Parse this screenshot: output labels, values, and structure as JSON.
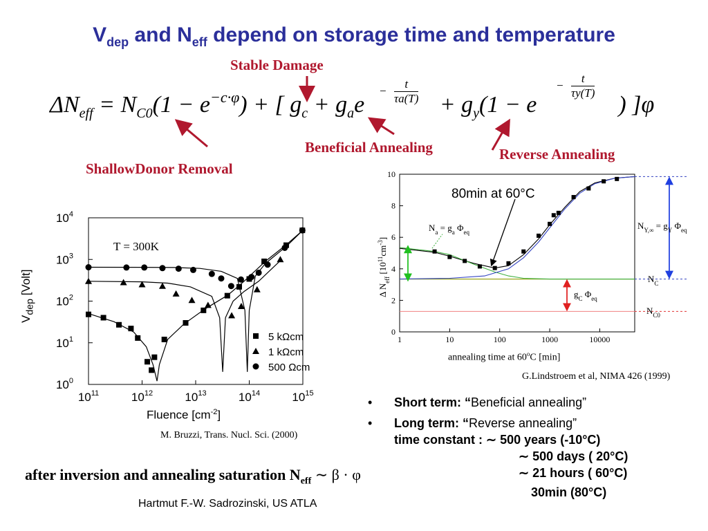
{
  "title": {
    "p1": "V",
    "s1": "dep",
    "p2": " and N",
    "s2": "eff",
    "p3": "  depend on storage time and temperature"
  },
  "labels": {
    "stable": "Stable Damage",
    "beneficial": "Beneficial Annealing",
    "reverse": "Reverse Annealing",
    "shallow": "ShallowDonor Removal"
  },
  "formula": {
    "lhs": "ΔN",
    "lhs_sub": "eff",
    "eq": "= N",
    "c0": "C0",
    "p1": "(1 − e",
    "exp1": "−c·φ",
    "p2": ") + [ g",
    "gc": "c",
    "plus": " + g",
    "ga": "a",
    "e": "e",
    "plus2": " + g",
    "gy": "y",
    "p3": "(1 − e",
    "end": ") ]φ",
    "frac_a_num": "t",
    "frac_a_den": "τa(T)",
    "frac_y_num": "t",
    "frac_y_den": "τy(T)"
  },
  "left_chart_texts": {
    "temp": "T = 300K",
    "ylabel_main": "V",
    "ylabel_sub": "dep",
    "ylabel_rest": " [Volt]",
    "xlabel": "Fluence [cm",
    "xlabel_sup": "-2",
    "xlabel_end": "]",
    "legend": [
      "5 kΩcm",
      "1 kΩcm",
      "500 Ωcm"
    ],
    "citation": "M. Bruzzi, Trans. Nucl. Sci. (2000)"
  },
  "right_chart_texts": {
    "annotation": "80min at 60°C",
    "na_label": "N",
    "na_sub": "a",
    "na_rest": " = g",
    "na_sub2": "a",
    "na_end": " Φ",
    "na_sub3": "eq",
    "ny_label": "N",
    "ny_sub": "Y,∞",
    "ny_rest": " = g",
    "ny_sub2": "Y",
    "ny_end": " Φ",
    "ny_sub3": "eq",
    "nc_label": "N",
    "nc_sub": "C",
    "gc_label": "g",
    "gc_sub": "C",
    "gc_end": " Φ",
    "gc_sub2": "eq",
    "nc0_label": "N",
    "nc0_sub": "C0",
    "ylabel": "Δ N",
    "ylabel_sub": "eff",
    "ylabel_rest": " [10",
    "ylabel_sup": "11",
    "ylabel_end": "cm",
    "ylabel_sup2": "-3",
    "ylabel_close": "]",
    "xlabel": "annealing time at 60",
    "xlabel_sup": "o",
    "xlabel_end": "C [min]",
    "citation": "G.Lindstroem et al, NIMA 426 (1999)"
  },
  "chart_data": [
    {
      "type": "scatter",
      "title": "",
      "xlabel": "Fluence [cm-2]",
      "ylabel": "Vdep [Volt]",
      "xscale": "log",
      "yscale": "log",
      "xlim": [
        100000000000.0,
        1000000000000000.0
      ],
      "ylim": [
        1,
        10000
      ],
      "x_ticks": [
        "10^11",
        "10^12",
        "10^13",
        "10^14",
        "10^15"
      ],
      "y_ticks": [
        "10^0",
        "10^1",
        "10^2",
        "10^3",
        "10^4"
      ],
      "legend_position": "bottom-right",
      "series": [
        {
          "name": "5 kΩcm",
          "marker": "square",
          "points": [
            [
              100000000000.0,
              48
            ],
            [
              190000000000.0,
              40
            ],
            [
              370000000000.0,
              27
            ],
            [
              620000000000.0,
              22
            ],
            [
              830000000000.0,
              13
            ],
            [
              1250000000000.0,
              3.5
            ],
            [
              1500000000000.0,
              2.2
            ],
            [
              1700000000000.0,
              4.5
            ],
            [
              2600000000000.0,
              12
            ],
            [
              6500000000000.0,
              30
            ],
            [
              14000000000000.0,
              60
            ],
            [
              39000000000000.0,
              135
            ],
            [
              65000000000000.0,
              220
            ],
            [
              100000000000000.0,
              340
            ],
            [
              190000000000000.0,
              900
            ],
            [
              490000000000000.0,
              2200
            ],
            [
              980000000000000.0,
              5000
            ]
          ]
        },
        {
          "name": "1 kΩcm",
          "marker": "triangle",
          "points": [
            [
              100000000000.0,
              300
            ],
            [
              450000000000.0,
              280
            ],
            [
              1000000000000.0,
              250
            ],
            [
              2400000000000.0,
              230
            ],
            [
              4300000000000.0,
              150
            ],
            [
              8500000000000.0,
              105
            ],
            [
              17000000000000.0,
              80
            ],
            [
              47000000000000.0,
              45
            ],
            [
              71000000000000.0,
              75
            ],
            [
              140000000000000.0,
              190
            ],
            [
              380000000000000.0,
              1000
            ]
          ]
        },
        {
          "name": "500 Ωcm",
          "marker": "circle",
          "points": [
            [
              100000000000.0,
              650
            ],
            [
              510000000000.0,
              640
            ],
            [
              1100000000000.0,
              640
            ],
            [
              2400000000000.0,
              620
            ],
            [
              4800000000000.0,
              600
            ],
            [
              9000000000000.0,
              560
            ],
            [
              20000000000000.0,
              450
            ],
            [
              30000000000000.0,
              350
            ],
            [
              46000000000000.0,
              230
            ],
            [
              70000000000000.0,
              330
            ],
            [
              110000000000000.0,
              380
            ],
            [
              150000000000000.0,
              480
            ],
            [
              220000000000000.0,
              750
            ],
            [
              460000000000000.0,
              1900
            ],
            [
              980000000000000.0,
              5000
            ]
          ]
        }
      ]
    },
    {
      "type": "line",
      "title": "",
      "xlabel": "annealing time at 60°C [min]",
      "ylabel": "Δ Neff [10^11 cm^-3]",
      "xscale": "log",
      "xlim": [
        1,
        50000
      ],
      "ylim": [
        0,
        10
      ],
      "x_ticks": [
        "1",
        "10",
        "100",
        "1000",
        "10000"
      ],
      "y_ticks": [
        "0",
        "2",
        "4",
        "6",
        "8",
        "10"
      ],
      "series": [
        {
          "name": "data",
          "marker": "square",
          "points": [
            [
              5,
              5.1
            ],
            [
              10,
              4.75
            ],
            [
              20,
              4.5
            ],
            [
              40,
              4.15
            ],
            [
              80,
              4.05
            ],
            [
              150,
              4.35
            ],
            [
              300,
              5.1
            ],
            [
              600,
              6.1
            ],
            [
              1000,
              6.85
            ],
            [
              1200,
              7.4
            ],
            [
              1500,
              7.55
            ],
            [
              3000,
              8.55
            ],
            [
              6000,
              9.1
            ],
            [
              12000,
              9.55
            ],
            [
              22000,
              9.7
            ]
          ]
        },
        {
          "name": "fit",
          "style": "line",
          "points": [
            [
              1,
              5.3
            ],
            [
              5,
              5.05
            ],
            [
              10,
              4.8
            ],
            [
              30,
              4.35
            ],
            [
              80,
              4.05
            ],
            [
              150,
              4.2
            ],
            [
              300,
              4.9
            ],
            [
              600,
              5.9
            ],
            [
              1000,
              6.8
            ],
            [
              2000,
              7.9
            ],
            [
              4000,
              8.9
            ],
            [
              8000,
              9.45
            ],
            [
              20000,
              9.75
            ],
            [
              50000,
              9.85
            ]
          ]
        },
        {
          "name": "Na decay",
          "style": "green",
          "points": [
            [
              1,
              5.35
            ],
            [
              5,
              5.1
            ],
            [
              10,
              4.9
            ],
            [
              30,
              4.3
            ],
            [
              80,
              3.8
            ],
            [
              150,
              3.55
            ],
            [
              300,
              3.4
            ],
            [
              1000,
              3.35
            ],
            [
              50000,
              3.35
            ]
          ]
        },
        {
          "name": "Ny rise",
          "style": "blue",
          "points": [
            [
              1,
              3.35
            ],
            [
              10,
              3.4
            ],
            [
              50,
              3.55
            ],
            [
              150,
              4.0
            ],
            [
              300,
              4.7
            ],
            [
              600,
              5.7
            ],
            [
              1000,
              6.6
            ],
            [
              2000,
              7.8
            ],
            [
              4000,
              8.8
            ],
            [
              8000,
              9.4
            ],
            [
              20000,
              9.75
            ],
            [
              50000,
              9.85
            ]
          ]
        },
        {
          "name": "NC",
          "style": "level",
          "value": 3.35
        },
        {
          "name": "NC0",
          "style": "level",
          "value": 1.3
        },
        {
          "name": "NY,inf",
          "style": "level",
          "value": 9.85
        }
      ]
    }
  ],
  "bullets": [
    {
      "bold": "Short term: “",
      "text": "Beneficial annealing”"
    },
    {
      "bold": "Long term: “",
      "text": "Reverse annealing”"
    }
  ],
  "time_constant": {
    "label": "time constant :",
    "lines": [
      "∼ 500 years (-10°C)",
      "∼ 500 days   ( 20°C)",
      "∼  21 hours   ( 60°C)",
      "30min (80°C)"
    ]
  },
  "bottom": {
    "text": "after inversion and annealing saturation N",
    "sub": "eff",
    "rest": "  ∼ β · φ"
  },
  "footer": {
    "text": "Hartmut F.-W. Sadrozinski, US ATLA"
  }
}
